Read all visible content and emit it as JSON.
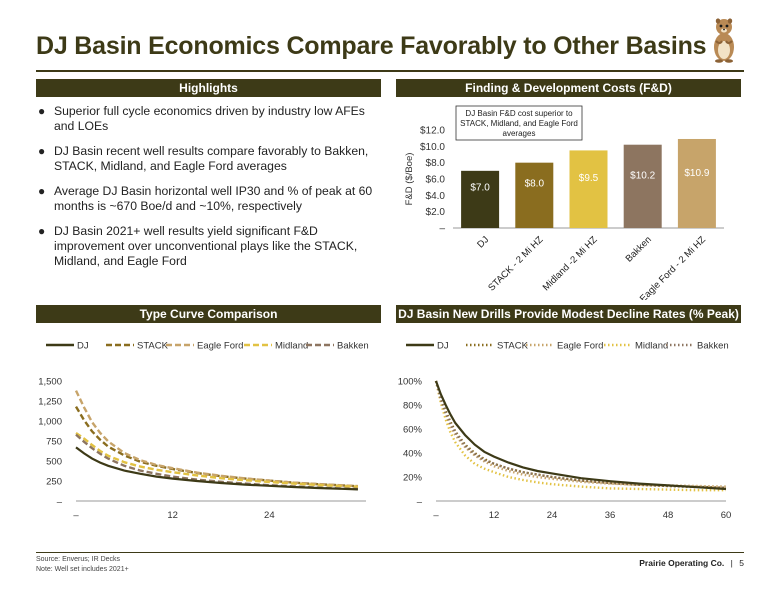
{
  "title": "DJ Basin Economics Compare Favorably to Other Basins",
  "sections": {
    "highlights": "Highlights",
    "fd": "Finding & Development Costs (F&D)",
    "type_curve": "Type Curve Comparison",
    "decline": "DJ Basin New Drills Provide Modest Decline Rates (% Peak)"
  },
  "highlights": [
    "Superior full cycle economics driven by industry low AFEs and LOEs",
    "DJ Basin recent well results compare favorably to Bakken, STACK, Midland, and Eagle Ford averages",
    "Average DJ Basin horizontal well IP30 and % of peak at 60 months is ~670 Boe/d and ~10%, respectively",
    "DJ Basin 2021+ well results yield significant F&D improvement over unconventional plays like the STACK, Midland, and Eagle Ford"
  ],
  "colors": {
    "DJ": "#3d3a17",
    "STACK": "#8a6d1f",
    "Eagle Ford": "#c7a46a",
    "Midland": "#e2c243",
    "Bakken": "#8d7560"
  },
  "chart_data": [
    {
      "type": "bar",
      "ylabel": "F&D ($/Boe)",
      "categories": [
        "DJ",
        "STACK - 2 Mi HZ",
        "Midland -2 Mi HZ",
        "Bakken",
        "Eagle Ford - 2 Mi HZ"
      ],
      "values": [
        7.0,
        8.0,
        9.5,
        10.2,
        10.9
      ],
      "value_labels": [
        "$7.0",
        "$8.0",
        "$9.5",
        "$10.2",
        "$10.9"
      ],
      "bar_colors": [
        "#3d3a17",
        "#8a6d1f",
        "#e2c243",
        "#8d7560",
        "#c7a46a"
      ],
      "yticks": [
        "–",
        "$2.0",
        "$4.0",
        "$6.0",
        "$8.0",
        "$10.0",
        "$12.0"
      ],
      "ylim": [
        0,
        12
      ],
      "annotation": [
        "DJ Basin F&D cost superior to",
        "STACK, Midland, and Eagle Ford",
        "averages"
      ]
    },
    {
      "type": "line",
      "legend": [
        "DJ",
        "STACK",
        "Eagle Ford",
        "Midland",
        "Bakken"
      ],
      "legend_position": "top",
      "xticks": [
        "–",
        "12",
        "24"
      ],
      "xlim": [
        0,
        36
      ],
      "yticks": [
        "–",
        "250",
        "500",
        "750",
        "1,000",
        "1,250",
        "1,500"
      ],
      "ylim": [
        0,
        1500
      ],
      "x": [
        0,
        1,
        2,
        3,
        4,
        6,
        8,
        10,
        12,
        15,
        18,
        21,
        24,
        27,
        30,
        33,
        35
      ],
      "series": [
        {
          "name": "DJ",
          "values": [
            670,
            595,
            530,
            480,
            440,
            380,
            340,
            305,
            280,
            250,
            225,
            205,
            190,
            175,
            163,
            152,
            145
          ]
        },
        {
          "name": "STACK",
          "values": [
            1180,
            1010,
            870,
            765,
            680,
            570,
            490,
            440,
            400,
            350,
            310,
            280,
            255,
            230,
            210,
            195,
            185
          ]
        },
        {
          "name": "Eagle Ford",
          "values": [
            1380,
            1170,
            985,
            850,
            745,
            600,
            510,
            450,
            410,
            355,
            315,
            282,
            255,
            230,
            212,
            196,
            186
          ]
        },
        {
          "name": "Midland",
          "values": [
            850,
            780,
            700,
            625,
            565,
            485,
            430,
            390,
            360,
            320,
            285,
            260,
            238,
            218,
            200,
            186,
            178
          ]
        },
        {
          "name": "Bakken",
          "values": [
            830,
            740,
            660,
            590,
            530,
            440,
            380,
            340,
            305,
            268,
            240,
            217,
            198,
            182,
            168,
            156,
            150
          ]
        }
      ]
    },
    {
      "type": "line",
      "legend": [
        "DJ",
        "STACK",
        "Eagle Ford",
        "Midland",
        "Bakken"
      ],
      "legend_position": "top",
      "xticks": [
        "–",
        "12",
        "24",
        "36",
        "48",
        "60"
      ],
      "xlim": [
        0,
        60
      ],
      "yticks": [
        "–",
        "20%",
        "40%",
        "60%",
        "80%",
        "100%"
      ],
      "ylim": [
        0,
        100
      ],
      "x": [
        0,
        1,
        2,
        3,
        4,
        6,
        8,
        10,
        12,
        15,
        18,
        21,
        24,
        30,
        36,
        42,
        48,
        54,
        60
      ],
      "series": [
        {
          "name": "DJ",
          "values": [
            100,
            89,
            80,
            72,
            65,
            55,
            47,
            41,
            37,
            32,
            28,
            25,
            23,
            19,
            16.5,
            14.5,
            13,
            11.5,
            10
          ]
        },
        {
          "name": "STACK",
          "values": [
            100,
            86,
            75,
            66,
            58,
            47,
            40,
            35,
            31,
            27,
            24,
            22,
            20,
            17,
            15,
            13.5,
            12.5,
            11.8,
            11
          ]
        },
        {
          "name": "Eagle Ford",
          "values": [
            100,
            84,
            72,
            62,
            55,
            45,
            38,
            33,
            29,
            25,
            22,
            20,
            18.5,
            16,
            14.5,
            13.5,
            13,
            12.5,
            12
          ]
        },
        {
          "name": "Midland",
          "values": [
            100,
            82,
            68,
            57,
            49,
            38,
            31,
            27,
            24,
            20,
            17.5,
            15.5,
            14,
            12,
            10.5,
            10,
            9.5,
            9,
            9
          ]
        },
        {
          "name": "Bakken",
          "values": [
            100,
            85,
            73,
            64,
            57,
            46,
            39,
            34,
            31,
            27,
            24,
            22,
            20,
            17,
            15,
            13.5,
            12.5,
            11.5,
            11
          ]
        }
      ]
    }
  ],
  "footer": {
    "source": "Source: Enverus; IR Decks",
    "note": "Note: Well set includes 2021+",
    "company": "Prairie Operating Co.",
    "separator": "|",
    "page": "5"
  }
}
